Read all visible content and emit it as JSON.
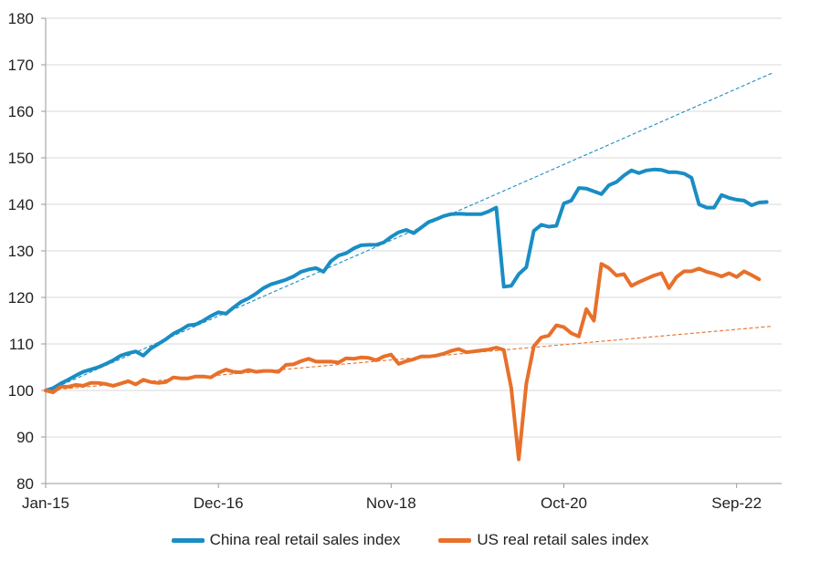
{
  "chart_data": {
    "type": "line",
    "title": "",
    "xlabel": "",
    "ylabel": "",
    "ylim": [
      80,
      180
    ],
    "yticks": [
      80,
      90,
      100,
      110,
      120,
      130,
      140,
      150,
      160,
      170,
      180
    ],
    "x_tick_labels": [
      "Jan-15",
      "Dec-16",
      "Nov-18",
      "Oct-20",
      "Sep-22"
    ],
    "x_start": "Jan-15",
    "x_end": "Mar-23",
    "grid": "horizontal",
    "legend_position": "bottom",
    "series": [
      {
        "name": "China real retail sales index",
        "color": "#1a8dc4",
        "points": [
          [
            "2015-01",
            100
          ],
          [
            "2015-02",
            100.5
          ],
          [
            "2015-03",
            101.5
          ],
          [
            "2015-04",
            102.3
          ],
          [
            "2015-05",
            103.2
          ],
          [
            "2015-06",
            104.0
          ],
          [
            "2015-07",
            104.5
          ],
          [
            "2015-08",
            105.0
          ],
          [
            "2015-09",
            105.7
          ],
          [
            "2015-10",
            106.5
          ],
          [
            "2015-11",
            107.5
          ],
          [
            "2015-12",
            108.0
          ],
          [
            "2016-01",
            108.4
          ],
          [
            "2016-02",
            107.5
          ],
          [
            "2016-03",
            109.0
          ],
          [
            "2016-04",
            110.0
          ],
          [
            "2016-05",
            111.0
          ],
          [
            "2016-06",
            112.2
          ],
          [
            "2016-07",
            113.0
          ],
          [
            "2016-08",
            114.0
          ],
          [
            "2016-09",
            114.2
          ],
          [
            "2016-10",
            115.0
          ],
          [
            "2016-11",
            116.0
          ],
          [
            "2016-12",
            116.8
          ],
          [
            "2017-01",
            116.5
          ],
          [
            "2017-02",
            117.8
          ],
          [
            "2017-03",
            119.0
          ],
          [
            "2017-04",
            119.8
          ],
          [
            "2017-05",
            120.8
          ],
          [
            "2017-06",
            122.0
          ],
          [
            "2017-07",
            122.8
          ],
          [
            "2017-08",
            123.3
          ],
          [
            "2017-09",
            123.8
          ],
          [
            "2017-10",
            124.5
          ],
          [
            "2017-11",
            125.5
          ],
          [
            "2017-12",
            126.0
          ],
          [
            "2018-01",
            126.3
          ],
          [
            "2018-02",
            125.5
          ],
          [
            "2018-03",
            127.8
          ],
          [
            "2018-04",
            129.0
          ],
          [
            "2018-05",
            129.5
          ],
          [
            "2018-06",
            130.5
          ],
          [
            "2018-07",
            131.2
          ],
          [
            "2018-08",
            131.3
          ],
          [
            "2018-09",
            131.3
          ],
          [
            "2018-10",
            131.8
          ],
          [
            "2018-11",
            133.0
          ],
          [
            "2018-12",
            134.0
          ],
          [
            "2019-01",
            134.5
          ],
          [
            "2019-02",
            133.8
          ],
          [
            "2019-03",
            135.0
          ],
          [
            "2019-04",
            136.2
          ],
          [
            "2019-05",
            136.8
          ],
          [
            "2019-06",
            137.5
          ],
          [
            "2019-07",
            137.9
          ],
          [
            "2019-08",
            138.0
          ],
          [
            "2019-09",
            137.9
          ],
          [
            "2019-10",
            137.9
          ],
          [
            "2019-11",
            137.9
          ],
          [
            "2019-12",
            138.5
          ],
          [
            "2020-01",
            139.3
          ],
          [
            "2020-02",
            122.3
          ],
          [
            "2020-03",
            122.5
          ],
          [
            "2020-04",
            125.0
          ],
          [
            "2020-05",
            126.5
          ],
          [
            "2020-06",
            134.3
          ],
          [
            "2020-07",
            135.6
          ],
          [
            "2020-08",
            135.2
          ],
          [
            "2020-09",
            135.4
          ],
          [
            "2020-10",
            140.2
          ],
          [
            "2020-11",
            140.8
          ],
          [
            "2020-12",
            143.5
          ],
          [
            "2021-01",
            143.4
          ],
          [
            "2021-02",
            142.8
          ],
          [
            "2021-03",
            142.2
          ],
          [
            "2021-04",
            144.1
          ],
          [
            "2021-05",
            144.8
          ],
          [
            "2021-06",
            146.2
          ],
          [
            "2021-07",
            147.3
          ],
          [
            "2021-08",
            146.7
          ],
          [
            "2021-09",
            147.3
          ],
          [
            "2021-10",
            147.5
          ],
          [
            "2021-11",
            147.4
          ],
          [
            "2021-12",
            146.9
          ],
          [
            "2022-01",
            146.9
          ],
          [
            "2022-02",
            146.6
          ],
          [
            "2022-03",
            145.7
          ],
          [
            "2022-04",
            140.0
          ],
          [
            "2022-05",
            139.3
          ],
          [
            "2022-06",
            139.3
          ],
          [
            "2022-07",
            142.0
          ],
          [
            "2022-08",
            141.4
          ],
          [
            "2022-09",
            141.0
          ],
          [
            "2022-10",
            140.8
          ],
          [
            "2022-11",
            139.8
          ],
          [
            "2022-12",
            140.4
          ],
          [
            "2023-01",
            140.5
          ]
        ],
        "trend": {
          "start": [
            "2015-01",
            99.7
          ],
          "end": [
            "2023-01",
            168.2
          ],
          "style": "dashed"
        }
      },
      {
        "name": "US real retail sales index",
        "color": "#e8702a",
        "points": [
          [
            "2015-01",
            100.0
          ],
          [
            "2015-02",
            99.6
          ],
          [
            "2015-03",
            100.8
          ],
          [
            "2015-04",
            100.8
          ],
          [
            "2015-05",
            101.2
          ],
          [
            "2015-06",
            101.0
          ],
          [
            "2015-07",
            101.6
          ],
          [
            "2015-08",
            101.6
          ],
          [
            "2015-09",
            101.4
          ],
          [
            "2015-10",
            101.0
          ],
          [
            "2015-11",
            101.5
          ],
          [
            "2015-12",
            102.0
          ],
          [
            "2016-01",
            101.3
          ],
          [
            "2016-02",
            102.3
          ],
          [
            "2016-03",
            101.8
          ],
          [
            "2016-04",
            101.6
          ],
          [
            "2016-05",
            101.8
          ],
          [
            "2016-06",
            102.8
          ],
          [
            "2016-07",
            102.6
          ],
          [
            "2016-08",
            102.6
          ],
          [
            "2016-09",
            103.0
          ],
          [
            "2016-10",
            103.0
          ],
          [
            "2016-11",
            102.8
          ],
          [
            "2016-12",
            103.8
          ],
          [
            "2017-01",
            104.5
          ],
          [
            "2017-02",
            104.0
          ],
          [
            "2017-03",
            103.9
          ],
          [
            "2017-04",
            104.4
          ],
          [
            "2017-05",
            104.0
          ],
          [
            "2017-06",
            104.2
          ],
          [
            "2017-07",
            104.2
          ],
          [
            "2017-08",
            104.0
          ],
          [
            "2017-09",
            105.5
          ],
          [
            "2017-10",
            105.6
          ],
          [
            "2017-11",
            106.3
          ],
          [
            "2017-12",
            106.8
          ],
          [
            "2018-01",
            106.2
          ],
          [
            "2018-02",
            106.2
          ],
          [
            "2018-03",
            106.2
          ],
          [
            "2018-04",
            106.0
          ],
          [
            "2018-05",
            106.9
          ],
          [
            "2018-06",
            106.8
          ],
          [
            "2018-07",
            107.1
          ],
          [
            "2018-08",
            107.0
          ],
          [
            "2018-09",
            106.5
          ],
          [
            "2018-10",
            107.3
          ],
          [
            "2018-11",
            107.7
          ],
          [
            "2018-12",
            105.7
          ],
          [
            "2019-01",
            106.3
          ],
          [
            "2019-02",
            106.7
          ],
          [
            "2019-03",
            107.3
          ],
          [
            "2019-04",
            107.3
          ],
          [
            "2019-05",
            107.5
          ],
          [
            "2019-06",
            107.9
          ],
          [
            "2019-07",
            108.5
          ],
          [
            "2019-08",
            108.9
          ],
          [
            "2019-09",
            108.2
          ],
          [
            "2019-10",
            108.4
          ],
          [
            "2019-11",
            108.6
          ],
          [
            "2019-12",
            108.8
          ],
          [
            "2020-01",
            109.2
          ],
          [
            "2020-02",
            108.7
          ],
          [
            "2020-03",
            100.5
          ],
          [
            "2020-04",
            85.2
          ],
          [
            "2020-05",
            101.5
          ],
          [
            "2020-06",
            109.5
          ],
          [
            "2020-07",
            111.4
          ],
          [
            "2020-08",
            111.8
          ],
          [
            "2020-09",
            114.0
          ],
          [
            "2020-10",
            113.6
          ],
          [
            "2020-11",
            112.3
          ],
          [
            "2020-12",
            111.6
          ],
          [
            "2021-01",
            117.5
          ],
          [
            "2021-02",
            115.0
          ],
          [
            "2021-03",
            127.2
          ],
          [
            "2021-04",
            126.3
          ],
          [
            "2021-05",
            124.7
          ],
          [
            "2021-06",
            125.0
          ],
          [
            "2021-07",
            122.5
          ],
          [
            "2021-08",
            123.3
          ],
          [
            "2021-09",
            124.0
          ],
          [
            "2021-10",
            124.7
          ],
          [
            "2021-11",
            125.2
          ],
          [
            "2021-12",
            122.0
          ],
          [
            "2022-01",
            124.4
          ],
          [
            "2022-02",
            125.6
          ],
          [
            "2022-03",
            125.6
          ],
          [
            "2022-04",
            126.2
          ],
          [
            "2022-05",
            125.5
          ],
          [
            "2022-06",
            125.1
          ],
          [
            "2022-07",
            124.5
          ],
          [
            "2022-08",
            125.2
          ],
          [
            "2022-09",
            124.4
          ],
          [
            "2022-10",
            125.6
          ],
          [
            "2022-11",
            124.8
          ],
          [
            "2022-12",
            123.9
          ]
        ],
        "trend": {
          "start": [
            "2015-01",
            100.0
          ],
          "end": [
            "2023-01",
            113.8
          ],
          "style": "dashed"
        }
      }
    ]
  }
}
